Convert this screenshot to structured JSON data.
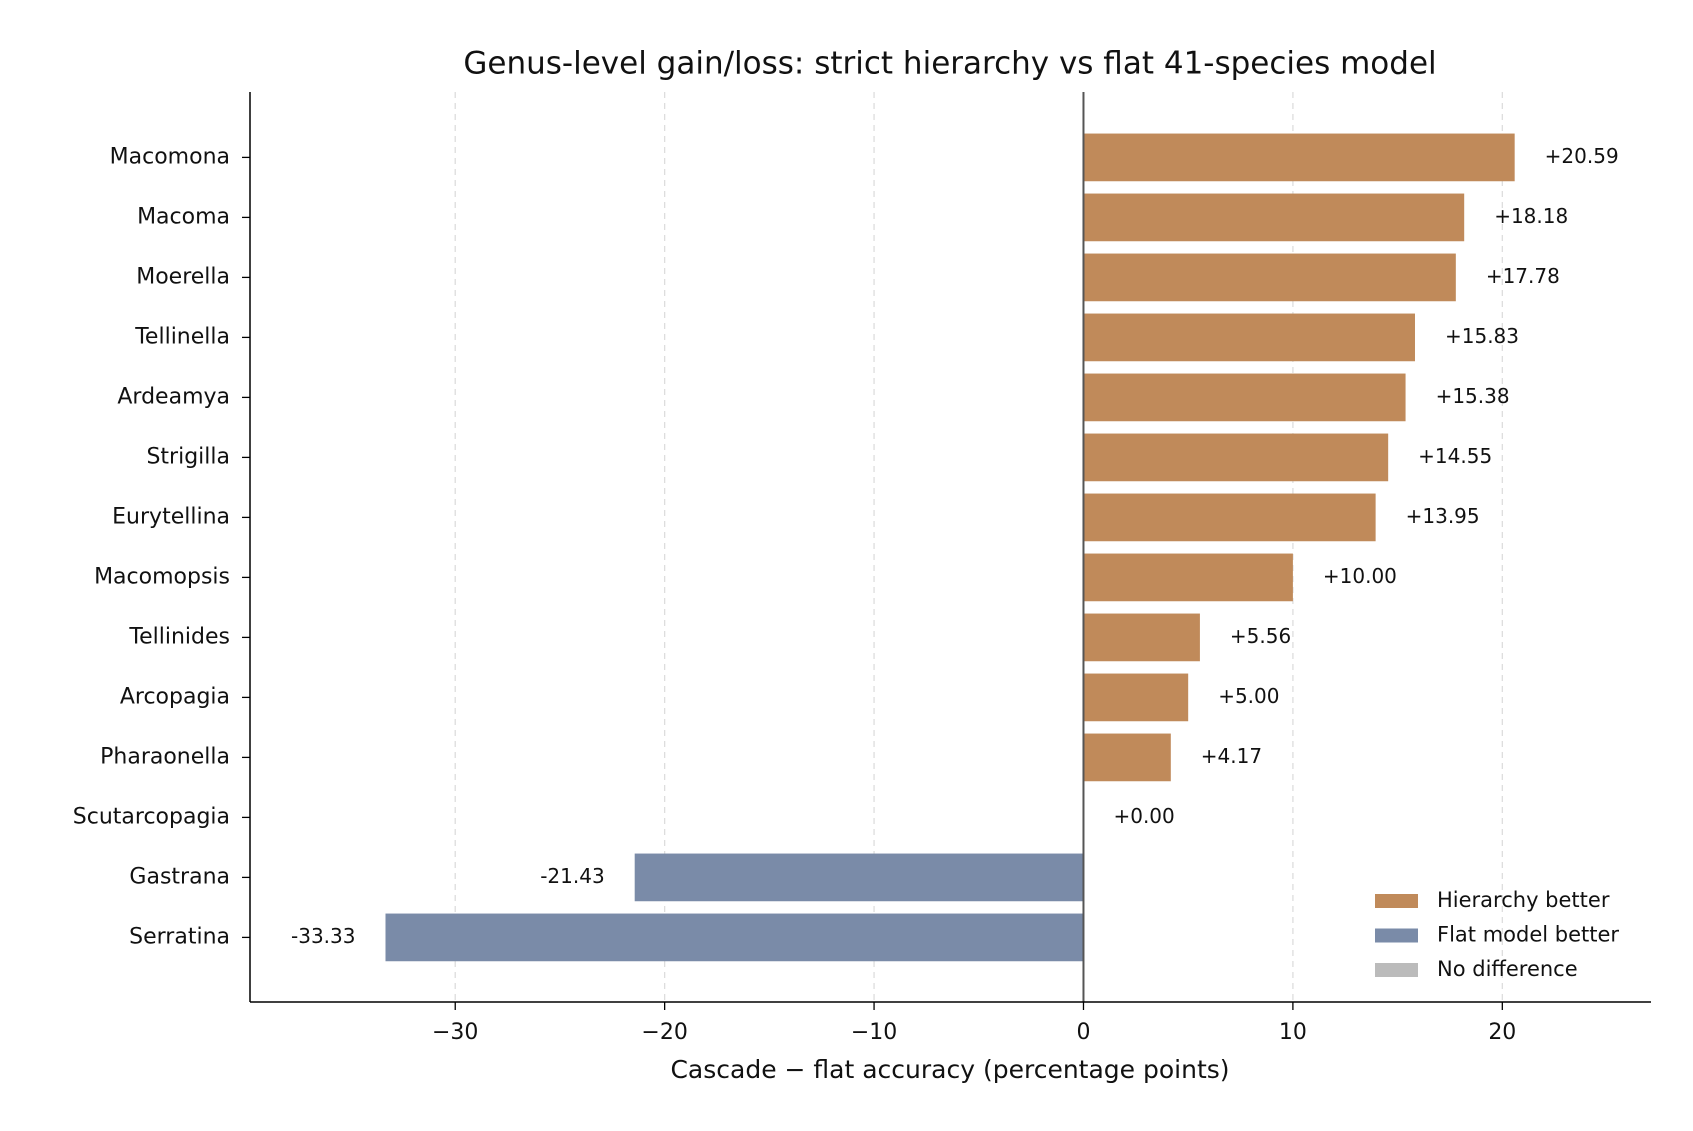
{
  "chart_data": {
    "type": "barh",
    "title": "Genus-level gain/loss: strict hierarchy vs flat 41-species model",
    "x_label": "Cascade − flat accuracy (percentage points)",
    "categories": [
      "Macomona",
      "Macoma",
      "Moerella",
      "Tellinella",
      "Ardeamya",
      "Strigilla",
      "Eurytellina",
      "Macomopsis",
      "Tellinides",
      "Arcopagia",
      "Pharaonella",
      "Scutarcopagia",
      "Gastrana",
      "Serratina"
    ],
    "values": [
      20.59,
      18.18,
      17.78,
      15.83,
      15.38,
      14.55,
      13.95,
      10.0,
      5.56,
      5.0,
      4.17,
      0.0,
      -21.43,
      -33.33
    ],
    "value_labels": [
      "+20.59",
      "+18.18",
      "+17.78",
      "+15.83",
      "+15.38",
      "+14.55",
      "+13.95",
      "+10.00",
      "+5.56",
      "+5.00",
      "+4.17",
      "+0.00",
      "-21.43",
      "-33.33"
    ],
    "xlim": [
      -39.8,
      27.1
    ],
    "xticks": [
      {
        "value": -30,
        "label": "−30"
      },
      {
        "value": -20,
        "label": "−20"
      },
      {
        "value": -10,
        "label": "−10"
      },
      0,
      10,
      20
    ],
    "grid": true,
    "legend_position": "lower right",
    "legend": [
      {
        "label": "Hierarchy better",
        "color": "#c08a5a"
      },
      {
        "label": "Flat model better",
        "color": "#7a8ba8"
      },
      {
        "label": "No difference",
        "color": "#bbbbbb"
      }
    ]
  }
}
